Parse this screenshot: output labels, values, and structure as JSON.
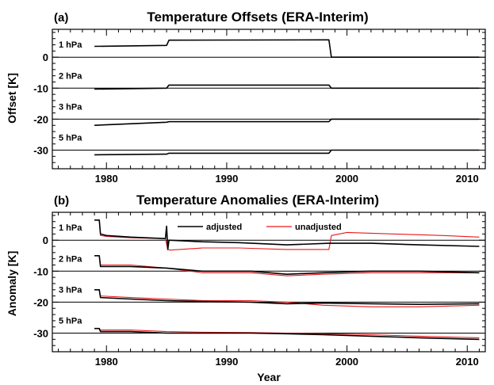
{
  "chart_data": [
    {
      "type": "line",
      "panel_label": "(a)",
      "title": "Temperature Offsets (ERA-Interim)",
      "ylabel": "Offset [K]",
      "xlabel": "",
      "xlim": [
        1975.5,
        2011.5
      ],
      "ylim": [
        -36,
        9
      ],
      "xticks": [
        1980,
        1990,
        2000,
        2010
      ],
      "yticks": [
        0,
        -10,
        -20,
        -30
      ],
      "reference_lines": [
        0,
        -10,
        -20,
        -30
      ],
      "levels": [
        {
          "label": "1 hPa",
          "series": [
            {
              "name": "",
              "x": [
                1979.0,
                1985.0,
                1985.2,
                1998.5,
                1998.7,
                2011.0
              ],
              "y": [
                3.5,
                3.8,
                5.5,
                5.6,
                0.0,
                0.0
              ]
            }
          ]
        },
        {
          "label": "2 hPa",
          "series": [
            {
              "name": "",
              "x": [
                1979.0,
                1985.0,
                1985.2,
                1998.5,
                1998.7,
                2011.0
              ],
              "y": [
                -10.3,
                -10.0,
                -9.0,
                -9.0,
                -10.0,
                -10.0
              ]
            }
          ]
        },
        {
          "label": "3 hPa",
          "series": [
            {
              "name": "",
              "x": [
                1979.0,
                1985.0,
                1985.2,
                1998.5,
                1998.7,
                2011.0
              ],
              "y": [
                -22.0,
                -21.0,
                -20.8,
                -20.8,
                -20.0,
                -20.0
              ]
            }
          ]
        },
        {
          "label": "5 hPa",
          "series": [
            {
              "name": "",
              "x": [
                1979.0,
                1985.0,
                1985.2,
                1998.5,
                1998.7,
                2011.0
              ],
              "y": [
                -31.5,
                -31.3,
                -31.0,
                -31.0,
                -30.0,
                -30.0
              ]
            }
          ]
        }
      ]
    },
    {
      "type": "line",
      "panel_label": "(b)",
      "title": "Temperature Anomalies (ERA-Interim)",
      "ylabel": "Anomaly [K]",
      "xlabel": "Year",
      "xlim": [
        1975.5,
        2011.5
      ],
      "ylim": [
        -36,
        9
      ],
      "xticks": [
        1980,
        1990,
        2000,
        2010
      ],
      "yticks": [
        0,
        -10,
        -20,
        -30
      ],
      "reference_lines": [
        0,
        -10,
        -20,
        -30
      ],
      "legend": {
        "position": "top",
        "entries": [
          {
            "name": "adjusted",
            "color": "#000000"
          },
          {
            "name": "unadjusted",
            "color": "#e8191c"
          }
        ]
      },
      "levels": [
        {
          "label": "1 hPa",
          "series": [
            {
              "name": "adjusted",
              "x": [
                1979.0,
                1979.4,
                1979.5,
                1980.0,
                1982.0,
                1984.9,
                1985.0,
                1985.1,
                1985.2,
                1988.0,
                1991.0,
                1995.0,
                1998.5,
                1999.0,
                2002.0,
                2006.0,
                2011.0
              ],
              "y": [
                6.5,
                6.5,
                2.0,
                1.5,
                1.0,
                0.5,
                4.5,
                -3.0,
                0.0,
                -0.5,
                -0.8,
                -1.5,
                -1.0,
                -1.0,
                -1.0,
                -1.5,
                -2.0
              ]
            },
            {
              "name": "unadjusted",
              "x": [
                1979.0,
                1979.4,
                1979.5,
                1980.0,
                1982.0,
                1984.9,
                1985.1,
                1985.3,
                1988.0,
                1991.0,
                1995.0,
                1998.5,
                1998.7,
                2000.0,
                2004.0,
                2008.0,
                2011.0
              ],
              "y": [
                6.5,
                6.5,
                1.5,
                1.2,
                0.8,
                0.5,
                -3.0,
                -3.2,
                -2.5,
                -2.5,
                -3.0,
                -3.0,
                1.5,
                2.5,
                2.0,
                1.5,
                1.0
              ]
            }
          ]
        },
        {
          "label": "2 hPa",
          "series": [
            {
              "name": "adjusted",
              "x": [
                1979.0,
                1979.4,
                1979.5,
                1982.0,
                1985.0,
                1988.0,
                1992.0,
                1995.0,
                1998.0,
                2002.0,
                2006.0,
                2011.0
              ],
              "y": [
                -5.0,
                -5.0,
                -8.5,
                -8.5,
                -9.0,
                -10.0,
                -10.0,
                -11.0,
                -10.5,
                -10.0,
                -10.0,
                -10.5
              ]
            },
            {
              "name": "unadjusted",
              "x": [
                1979.0,
                1979.4,
                1979.5,
                1982.0,
                1985.0,
                1988.0,
                1992.0,
                1995.0,
                1998.0,
                2002.0,
                2006.0,
                2011.0
              ],
              "y": [
                -5.0,
                -5.0,
                -8.0,
                -8.0,
                -9.0,
                -10.5,
                -10.5,
                -11.5,
                -11.0,
                -10.5,
                -10.5,
                -10.5
              ]
            }
          ]
        },
        {
          "label": "3 hPa",
          "series": [
            {
              "name": "adjusted",
              "x": [
                1979.0,
                1979.4,
                1979.5,
                1982.0,
                1985.0,
                1988.0,
                1992.0,
                1995.0,
                1998.0,
                2002.0,
                2006.0,
                2011.0
              ],
              "y": [
                -16.0,
                -16.0,
                -18.5,
                -19.0,
                -19.5,
                -19.8,
                -20.0,
                -20.5,
                -20.3,
                -20.5,
                -20.7,
                -20.5
              ]
            },
            {
              "name": "unadjusted",
              "x": [
                1979.0,
                1979.4,
                1979.5,
                1982.0,
                1985.0,
                1988.0,
                1992.0,
                1995.0,
                1998.0,
                2002.0,
                2006.0,
                2011.0
              ],
              "y": [
                -16.0,
                -16.0,
                -18.0,
                -18.5,
                -19.0,
                -19.5,
                -19.5,
                -20.0,
                -21.0,
                -21.5,
                -21.5,
                -21.0
              ]
            }
          ]
        },
        {
          "label": "5 hPa",
          "series": [
            {
              "name": "adjusted",
              "x": [
                1979.0,
                1979.4,
                1979.5,
                1982.0,
                1985.0,
                1988.0,
                1992.0,
                1995.0,
                1998.0,
                2002.0,
                2006.0,
                2011.0
              ],
              "y": [
                -28.5,
                -28.5,
                -29.5,
                -29.5,
                -30.0,
                -30.0,
                -30.0,
                -30.2,
                -30.5,
                -31.0,
                -31.5,
                -32.0
              ]
            },
            {
              "name": "unadjusted",
              "x": [
                1979.0,
                1979.4,
                1979.5,
                1982.0,
                1985.0,
                1988.0,
                1992.0,
                1995.0,
                1998.0,
                2002.0,
                2006.0,
                2011.0
              ],
              "y": [
                -28.5,
                -28.5,
                -29.0,
                -29.0,
                -29.5,
                -29.7,
                -29.8,
                -30.0,
                -30.2,
                -30.5,
                -31.0,
                -31.5
              ]
            }
          ]
        }
      ]
    }
  ]
}
